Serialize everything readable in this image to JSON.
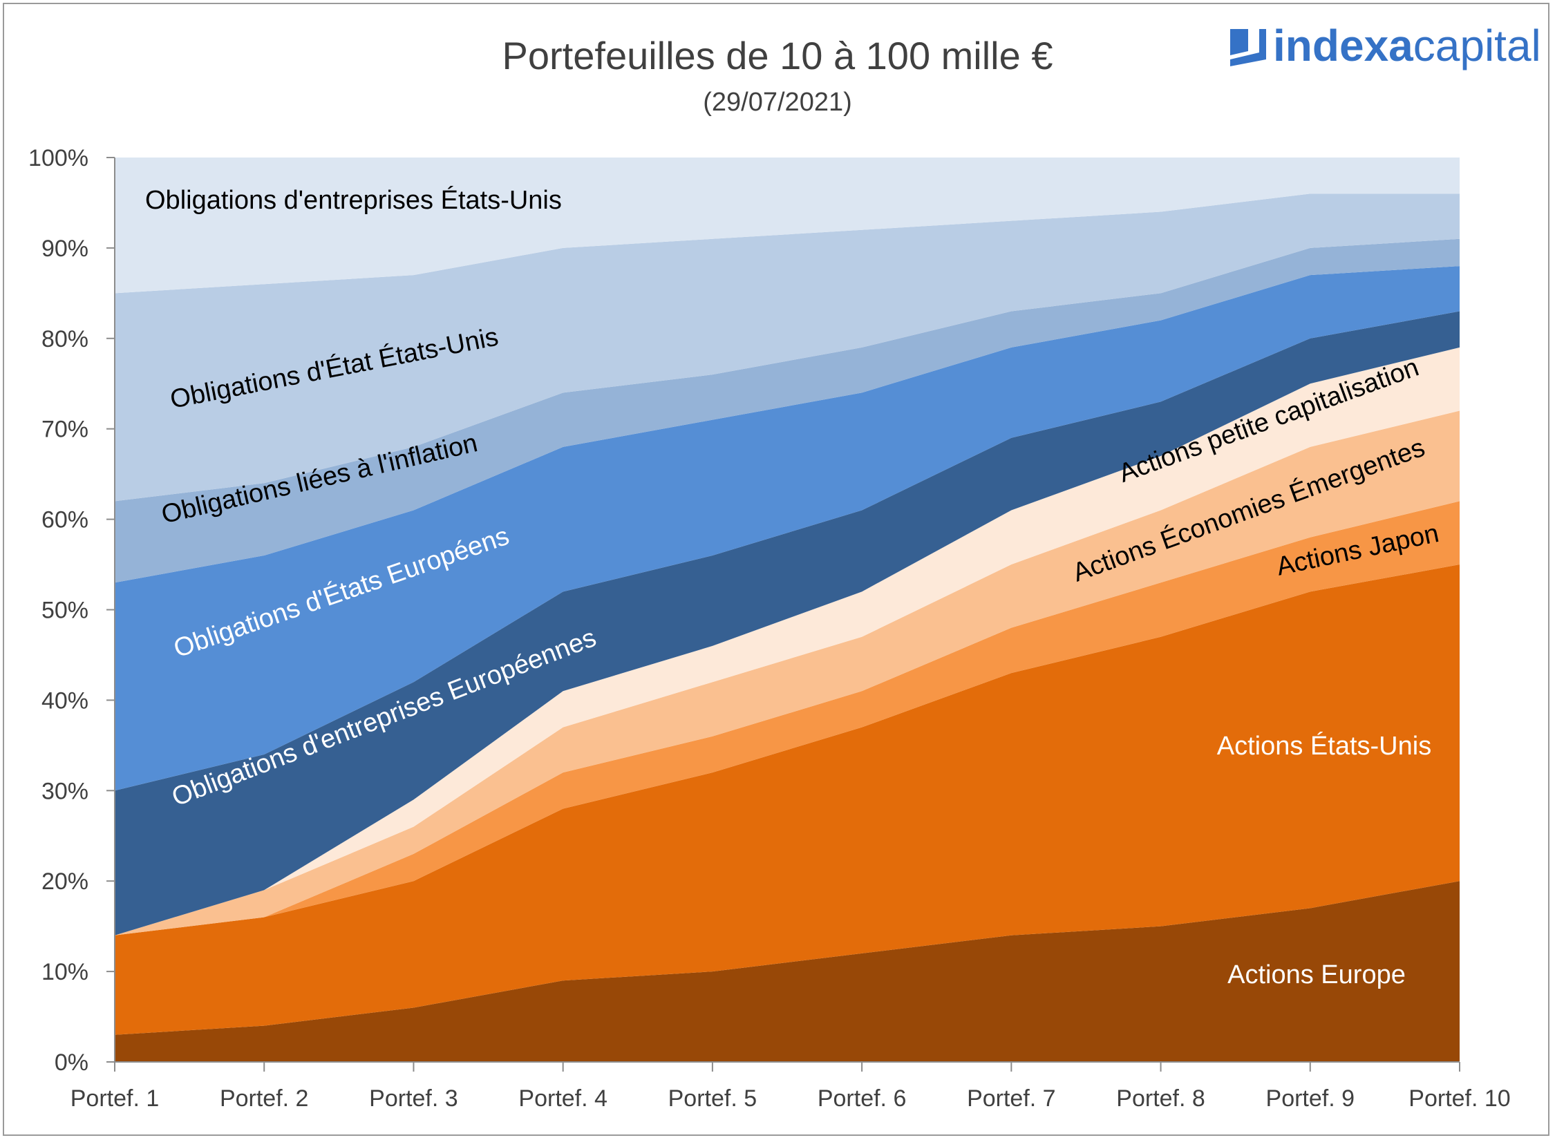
{
  "logo": {
    "part1": "indexa",
    "part2": "capital",
    "color": "#3572c6"
  },
  "chart_data": {
    "type": "area",
    "stacked": true,
    "title": "Portefeuilles de 10 à 100 mille €",
    "subtitle": "(29/07/2021)",
    "categories": [
      "Portef. 1",
      "Portef. 2",
      "Portef. 3",
      "Portef. 4",
      "Portef. 5",
      "Portef. 6",
      "Portef. 7",
      "Portef. 8",
      "Portef. 9",
      "Portef. 10"
    ],
    "y_ticks": [
      "0%",
      "10%",
      "20%",
      "30%",
      "40%",
      "50%",
      "60%",
      "70%",
      "80%",
      "90%",
      "100%"
    ],
    "ylim": [
      0,
      100
    ],
    "grid": false,
    "series": [
      {
        "name": "Actions Europe",
        "color": "#984807",
        "label_color": "#ffffff",
        "values": [
          3,
          4,
          6,
          9,
          10,
          12,
          14,
          15,
          17,
          20
        ]
      },
      {
        "name": "Actions États-Unis",
        "color": "#e36c0a",
        "label_color": "#ffffff",
        "values": [
          11,
          12,
          14,
          19,
          22,
          25,
          29,
          32,
          35,
          35
        ]
      },
      {
        "name": "Actions Japon",
        "color": "#f79646",
        "label_color": "#000000",
        "values": [
          0,
          0,
          3,
          4,
          4,
          4,
          5,
          6,
          6,
          7
        ]
      },
      {
        "name": "Actions Économies Émergentes",
        "color": "#fac090",
        "label_color": "#000000",
        "values": [
          0,
          3,
          3,
          5,
          6,
          6,
          7,
          8,
          10,
          10
        ]
      },
      {
        "name": "Actions petite capitalisation",
        "color": "#fde9d9",
        "label_color": "#000000",
        "values": [
          0,
          0,
          3,
          4,
          4,
          5,
          6,
          6,
          7,
          7
        ]
      },
      {
        "name": "Obligations d'entreprises Européennes",
        "color": "#366092",
        "label_color": "#ffffff",
        "values": [
          16,
          15,
          13,
          11,
          10,
          9,
          8,
          6,
          5,
          4
        ]
      },
      {
        "name": "Obligations d'États Européens",
        "color": "#558ed5",
        "label_color": "#ffffff",
        "values": [
          23,
          22,
          19,
          16,
          15,
          13,
          10,
          9,
          7,
          5
        ]
      },
      {
        "name": "Obligations liées à l'inflation",
        "color": "#95b3d7",
        "label_color": "#000000",
        "values": [
          9,
          8,
          7,
          6,
          5,
          5,
          4,
          3,
          3,
          3
        ]
      },
      {
        "name": "Obligations d'État États-Unis",
        "color": "#b9cde5",
        "label_color": "#000000",
        "values": [
          23,
          22,
          19,
          16,
          15,
          13,
          10,
          9,
          6,
          5
        ]
      },
      {
        "name": "Obligations d'entreprises États-Unis",
        "color": "#dce6f2",
        "label_color": "#000000",
        "values": [
          15,
          14,
          13,
          10,
          9,
          8,
          7,
          6,
          4,
          4
        ]
      }
    ]
  }
}
